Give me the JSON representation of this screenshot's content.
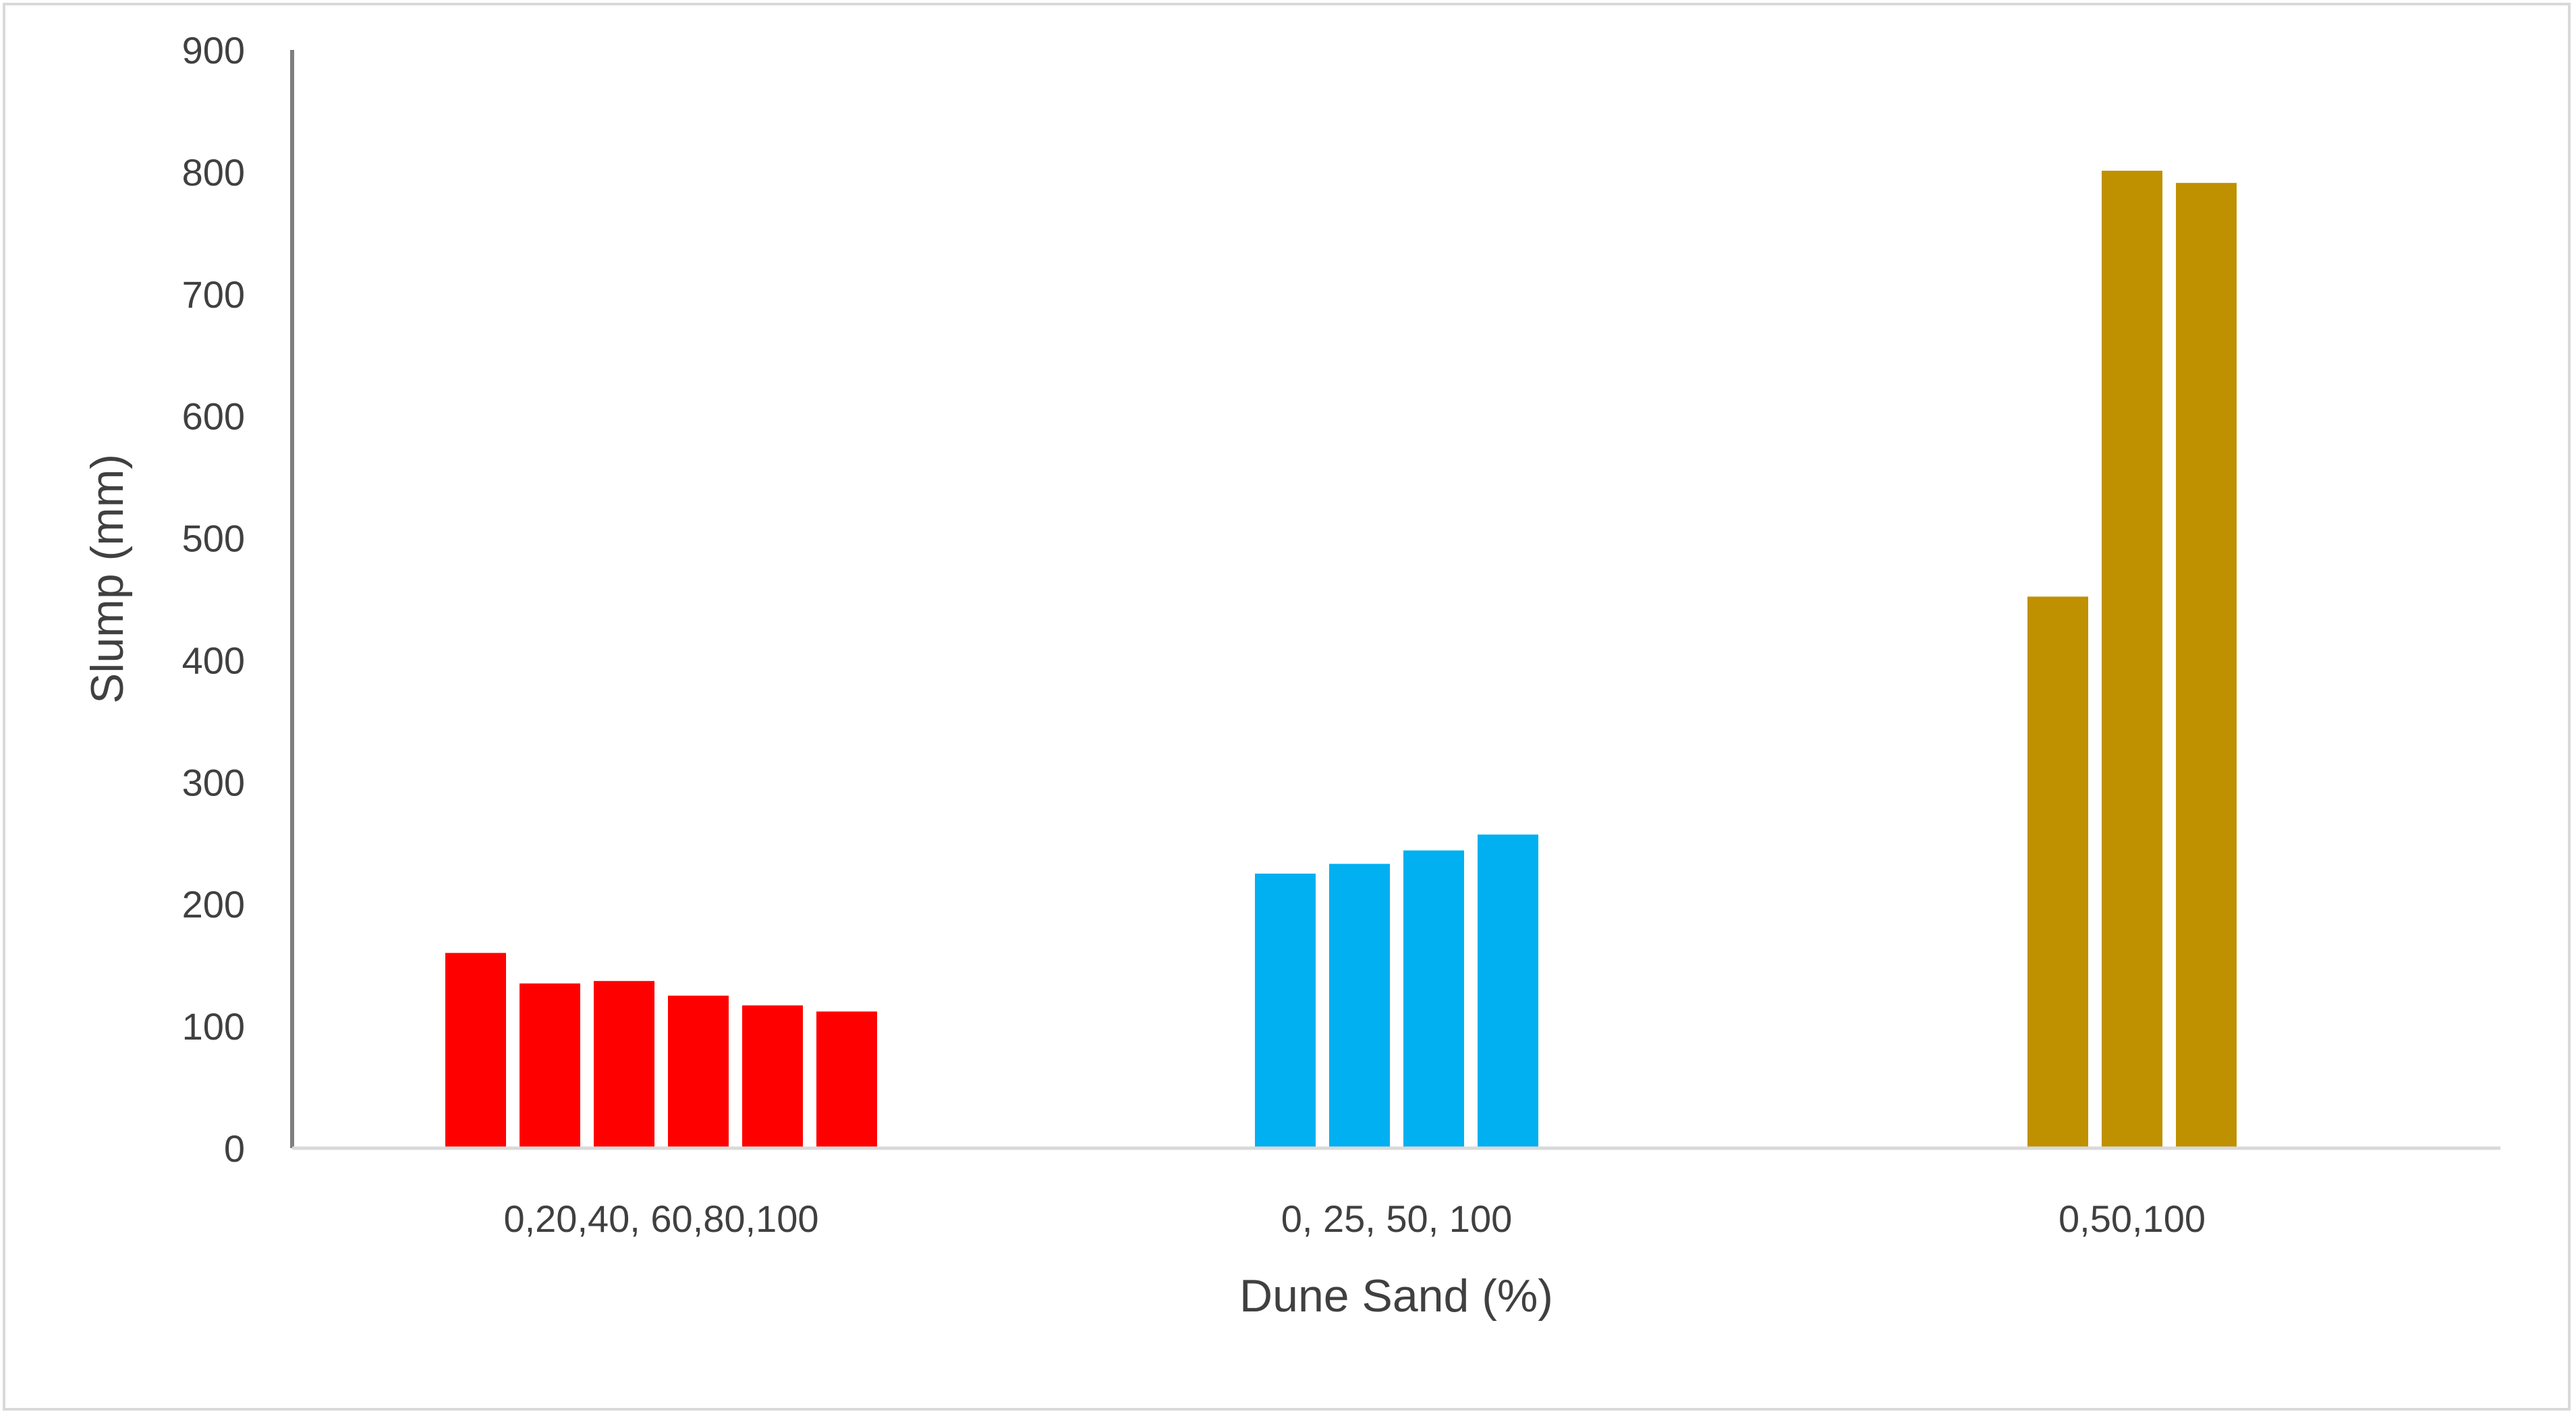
{
  "chart_data": {
    "type": "bar",
    "xlabel": "Dune Sand (%)",
    "ylabel": "Slump (mm)",
    "ylim": [
      0,
      900
    ],
    "yticks": [
      "0",
      "100",
      "200",
      "300",
      "400",
      "500",
      "600",
      "700",
      "800",
      "900"
    ],
    "grid": false,
    "groups": [
      {
        "label": "0,20,40, 60,80,100",
        "color": "#ff0000",
        "values": [
          160,
          135,
          137,
          125,
          117,
          112
        ]
      },
      {
        "label": "0, 25, 50, 100",
        "color": "#00b0f0",
        "values": [
          225,
          233,
          244,
          257
        ]
      },
      {
        "label": "0,50,100",
        "color": "#bf9000",
        "values": [
          452,
          801,
          791
        ]
      }
    ]
  },
  "colors": {
    "axis": "#7f7f7f",
    "text": "#404040"
  }
}
